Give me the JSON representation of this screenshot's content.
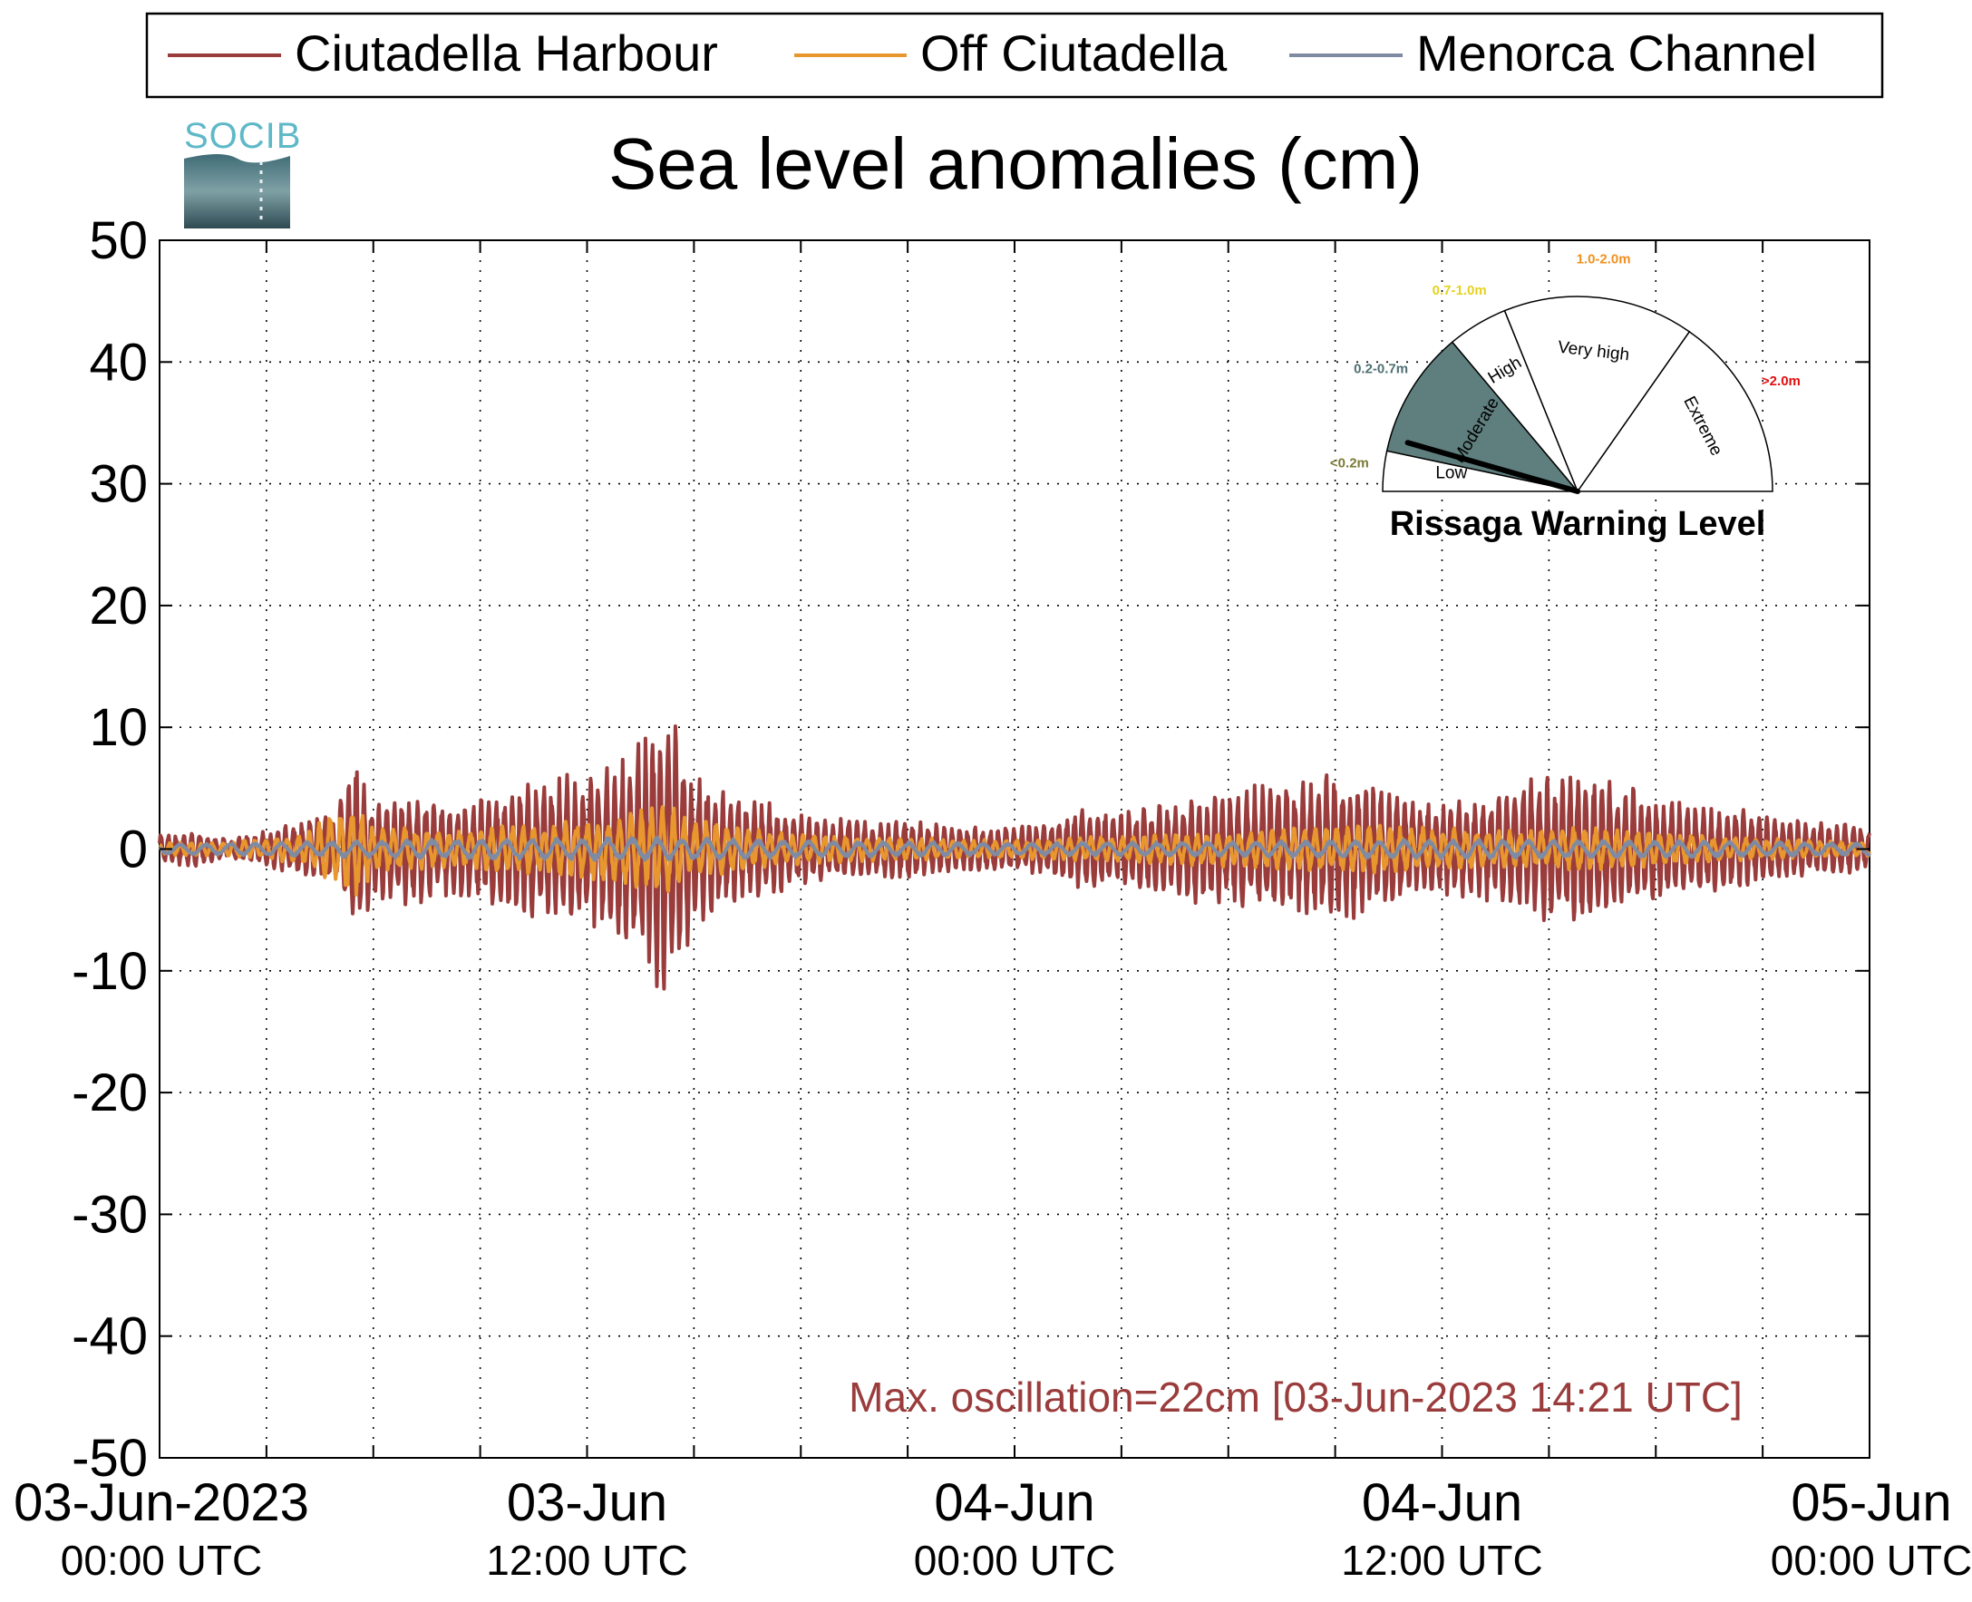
{
  "legend": {
    "placement": "top",
    "entries": [
      {
        "label": "Ciutadella Harbour",
        "color": "#9b3c3c"
      },
      {
        "label": "Off Ciutadella",
        "color": "#e8962e"
      },
      {
        "label": "Menorca Channel",
        "color": "#7f8aa3"
      }
    ]
  },
  "logo": {
    "text": "SOCIB"
  },
  "gauge": {
    "title": "Rissaga Warning Level",
    "current_level": "Moderate",
    "sectors": [
      {
        "name": "Low",
        "range": "<0.2m",
        "range_color": "#7a7a3a"
      },
      {
        "name": "Moderate",
        "range": "0.2-0.7m",
        "range_color": "#4f6f73",
        "fill": "#5f7f7e"
      },
      {
        "name": "High",
        "range": "0.7-1.0m",
        "range_color": "#e6d21e"
      },
      {
        "name": "Very high",
        "range": "1.0-2.0m",
        "range_color": "#f0901e"
      },
      {
        "name": "Extreme",
        "range": ">2.0m",
        "range_color": "#e01010"
      }
    ]
  },
  "annotation": {
    "text": "Max. oscillation=22cm [03-Jun-2023 14:21 UTC]",
    "color": "#9b3c3c"
  },
  "chart_data": {
    "type": "line",
    "title": "Sea level anomalies (cm)",
    "xlabel": "",
    "ylabel": "",
    "ylim": [
      -50,
      50
    ],
    "yticks": [
      50,
      40,
      30,
      20,
      10,
      0,
      -10,
      -20,
      -30,
      -40,
      -50
    ],
    "xlim": [
      "2023-06-03 00:00",
      "2023-06-05 00:00"
    ],
    "x_tick_labels": [
      {
        "date": "03-Jun-2023",
        "time": "00:00 UTC"
      },
      {
        "date": "03-Jun",
        "time": "12:00 UTC"
      },
      {
        "date": "04-Jun",
        "time": "00:00 UTC"
      },
      {
        "date": "04-Jun",
        "time": "12:00 UTC"
      },
      {
        "date": "05-Jun",
        "time": "00:00 UTC"
      }
    ],
    "grid": true,
    "series": [
      {
        "name": "Ciutadella Harbour",
        "color": "#9b3c3c",
        "x_hours": [
          0,
          1,
          2,
          3,
          4,
          5,
          5.5,
          6,
          6.5,
          7,
          8,
          9,
          10,
          11,
          12,
          13,
          13.5,
          14,
          14.35,
          14.7,
          15,
          16,
          17,
          18,
          19,
          20,
          21,
          22,
          23,
          24,
          25,
          26,
          27,
          28,
          29,
          30,
          31,
          32,
          33,
          34,
          35,
          36,
          37,
          38,
          39,
          40,
          41,
          42,
          43,
          44,
          45,
          46,
          47,
          48
        ],
        "envelope": [
          1.2,
          1.5,
          0.8,
          1.5,
          2.5,
          3.5,
          8,
          4,
          4.5,
          5,
          4,
          4.5,
          5.5,
          6,
          6.5,
          8,
          10,
          12,
          12.5,
          9,
          7,
          4.5,
          4,
          3,
          2.5,
          2.5,
          2.5,
          2,
          2,
          1.8,
          2.5,
          3.5,
          3,
          4,
          4.5,
          4.5,
          5.5,
          5.5,
          6.5,
          5.5,
          4.5,
          4,
          4,
          5.5,
          6.5,
          6.5,
          5.5,
          4.5,
          4,
          3.5,
          3,
          2.5,
          2.2,
          1.8
        ]
      },
      {
        "name": "Off Ciutadella",
        "color": "#e8962e",
        "x_hours": [
          0,
          2,
          4,
          5.5,
          6,
          8,
          10,
          12,
          13,
          14,
          14.5,
          15,
          17,
          20,
          24,
          28,
          32,
          34,
          36,
          38,
          40,
          42,
          44,
          48
        ],
        "envelope": [
          0.5,
          0.6,
          1.2,
          4.5,
          2,
          1.5,
          2,
          2.5,
          3,
          3.5,
          3.5,
          2.5,
          1.5,
          1,
          0.8,
          1.2,
          1.8,
          2,
          1.8,
          1.5,
          1.8,
          1.5,
          1,
          0.6
        ]
      },
      {
        "name": "Menorca Channel",
        "color": "#7f8aa3",
        "x_hours": [
          0,
          4,
          8,
          12,
          14,
          18,
          24,
          30,
          36,
          42,
          48
        ],
        "envelope": [
          0.4,
          0.6,
          0.8,
          0.9,
          1,
          0.7,
          0.5,
          0.6,
          0.8,
          0.7,
          0.5
        ]
      }
    ]
  }
}
